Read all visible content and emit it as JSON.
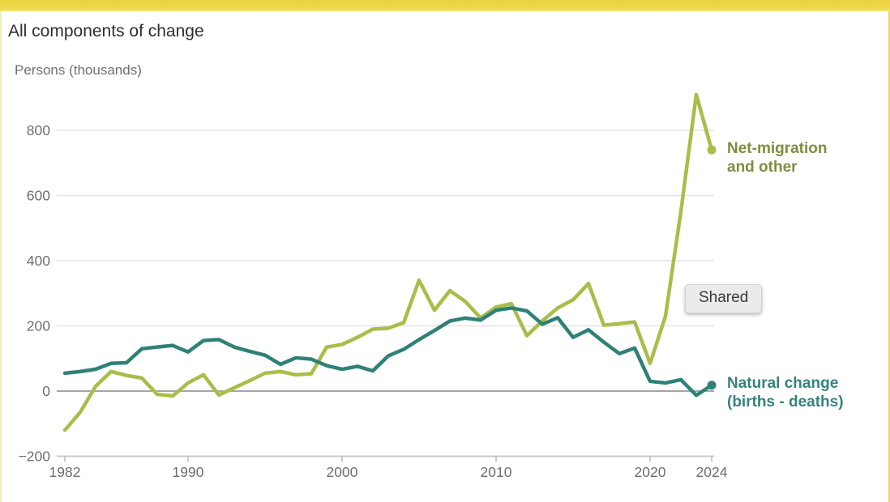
{
  "header": {
    "title": "All components of change",
    "subtitle": "Persons (thousands)"
  },
  "annotations": {
    "shared_button": "Shared"
  },
  "accent_colors": {
    "top_bar": "#edd647",
    "right_border": "#ebd94e",
    "left_border": "#f1edb4",
    "zero_line": "#a6a6a6",
    "gridline": "#e4e4e4"
  },
  "chart_data": {
    "type": "line",
    "title": "All components of change",
    "ylabel": "Persons (thousands)",
    "xlabel": "",
    "grid": "horizontal",
    "ylim": [
      -200,
      950
    ],
    "xlim": [
      1982,
      2024
    ],
    "legend_position": "end-of-line labels at right",
    "x": [
      1982,
      1983,
      1984,
      1985,
      1986,
      1987,
      1988,
      1989,
      1990,
      1991,
      1992,
      1993,
      1994,
      1995,
      1996,
      1997,
      1998,
      1999,
      2000,
      2001,
      2002,
      2003,
      2004,
      2005,
      2006,
      2007,
      2008,
      2009,
      2010,
      2011,
      2012,
      2013,
      2014,
      2015,
      2016,
      2017,
      2018,
      2019,
      2020,
      2021,
      2022,
      2023,
      2024
    ],
    "series": [
      {
        "name": "Net-migration and other",
        "color": "#a9bd49",
        "label_color": "#7f8d3e",
        "values": [
          -120,
          -65,
          15,
          60,
          48,
          40,
          -10,
          -15,
          25,
          50,
          -12,
          10,
          32,
          55,
          60,
          50,
          53,
          135,
          143,
          165,
          190,
          193,
          210,
          340,
          248,
          308,
          275,
          224,
          258,
          268,
          170,
          215,
          255,
          280,
          330,
          202,
          207,
          212,
          85,
          230,
          550,
          910,
          740
        ]
      },
      {
        "name": "Natural change (births - deaths)",
        "color": "#2f8177",
        "label_color": "#35837b",
        "values": [
          55,
          60,
          67,
          85,
          87,
          130,
          135,
          140,
          120,
          155,
          158,
          135,
          122,
          110,
          82,
          102,
          98,
          78,
          67,
          76,
          62,
          108,
          128,
          158,
          186,
          215,
          224,
          218,
          248,
          255,
          246,
          205,
          225,
          165,
          188,
          150,
          115,
          132,
          30,
          25,
          35,
          -13,
          18
        ]
      }
    ],
    "y_ticks": [
      {
        "v": 800,
        "label": "800"
      },
      {
        "v": 600,
        "label": "600"
      },
      {
        "v": 400,
        "label": "400"
      },
      {
        "v": 200,
        "label": "200"
      },
      {
        "v": 0,
        "label": "0"
      },
      {
        "v": -200,
        "label": "−200"
      }
    ],
    "x_ticks": [
      {
        "v": 1982,
        "label": "1982"
      },
      {
        "v": 1990,
        "label": "1990"
      },
      {
        "v": 2000,
        "label": "2000"
      },
      {
        "v": 2010,
        "label": "2010"
      },
      {
        "v": 2020,
        "label": "2020"
      },
      {
        "v": 2024,
        "label": "2024"
      }
    ]
  }
}
